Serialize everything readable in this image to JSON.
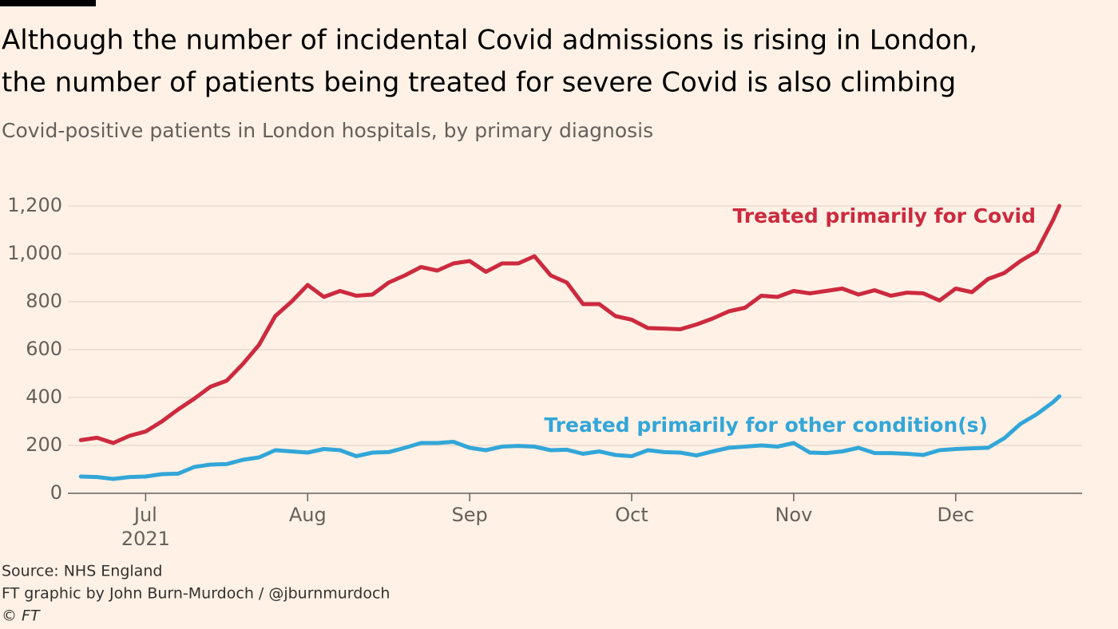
{
  "chart_data": {
    "type": "line",
    "title": [
      "Although the number of incidental Covid admissions is rising in London,",
      "the number of patients being treated for severe Covid is also climbing"
    ],
    "subtitle": "Covid-positive patients in London hospitals, by primary diagnosis",
    "x": [
      6.6,
      6.7,
      6.8,
      6.9,
      7.0,
      7.1,
      7.2,
      7.3,
      7.4,
      7.5,
      7.6,
      7.7,
      7.8,
      7.9,
      8.0,
      8.1,
      8.2,
      8.3,
      8.4,
      8.5,
      8.6,
      8.7,
      8.8,
      8.9,
      9.0,
      9.1,
      9.2,
      9.3,
      9.4,
      9.5,
      9.6,
      9.7,
      9.8,
      9.9,
      10.0,
      10.1,
      10.2,
      10.3,
      10.4,
      10.5,
      10.6,
      10.7,
      10.8,
      10.9,
      11.0,
      11.1,
      11.2,
      11.3,
      11.4,
      11.5,
      11.6,
      11.7,
      11.8,
      11.9,
      12.0,
      12.1,
      12.2,
      12.3,
      12.4,
      12.5,
      12.6,
      12.64
    ],
    "series": [
      {
        "name": "Treated primarily for Covid",
        "color": "#cc2a3f",
        "values": [
          222,
          232,
          210,
          240,
          258,
          300,
          350,
          395,
          445,
          470,
          540,
          620,
          740,
          800,
          870,
          820,
          845,
          825,
          830,
          880,
          910,
          945,
          930,
          960,
          970,
          925,
          960,
          960,
          990,
          910,
          880,
          790,
          790,
          740,
          725,
          690,
          688,
          685,
          705,
          730,
          760,
          775,
          825,
          820,
          845,
          835,
          845,
          855,
          830,
          848,
          825,
          838,
          835,
          805,
          855,
          840,
          895,
          920,
          970,
          1010,
          1140,
          1200
        ]
      },
      {
        "name": "Treated primarily for other condition(s)",
        "color": "#32a6d8",
        "values": [
          70,
          68,
          60,
          68,
          70,
          80,
          82,
          110,
          120,
          122,
          140,
          150,
          180,
          175,
          170,
          185,
          180,
          155,
          170,
          172,
          190,
          210,
          210,
          215,
          190,
          180,
          195,
          198,
          195,
          180,
          182,
          165,
          175,
          160,
          155,
          180,
          172,
          170,
          158,
          175,
          190,
          195,
          200,
          195,
          210,
          170,
          168,
          175,
          190,
          168,
          168,
          165,
          160,
          180,
          185,
          188,
          190,
          230,
          290,
          330,
          380,
          405
        ]
      }
    ],
    "xlim": [
      6.52,
      12.78
    ],
    "xticks": [
      {
        "value": 7,
        "label": "Jul"
      },
      {
        "value": 8,
        "label": "Aug"
      },
      {
        "value": 9,
        "label": "Sep"
      },
      {
        "value": 10,
        "label": "Oct"
      },
      {
        "value": 11,
        "label": "Nov"
      },
      {
        "value": 12,
        "label": "Dec"
      }
    ],
    "x_year_label": "2021",
    "ylim": [
      0,
      1200
    ],
    "yticks": [
      0,
      200,
      400,
      600,
      800,
      {
        "value": 1000,
        "label": "1,000"
      },
      {
        "value": 1200,
        "label": "1,200"
      }
    ],
    "grid": true,
    "source": [
      "Source: NHS England",
      "FT graphic by John Burn-Murdoch / @jburnmurdoch",
      "© FT"
    ]
  }
}
